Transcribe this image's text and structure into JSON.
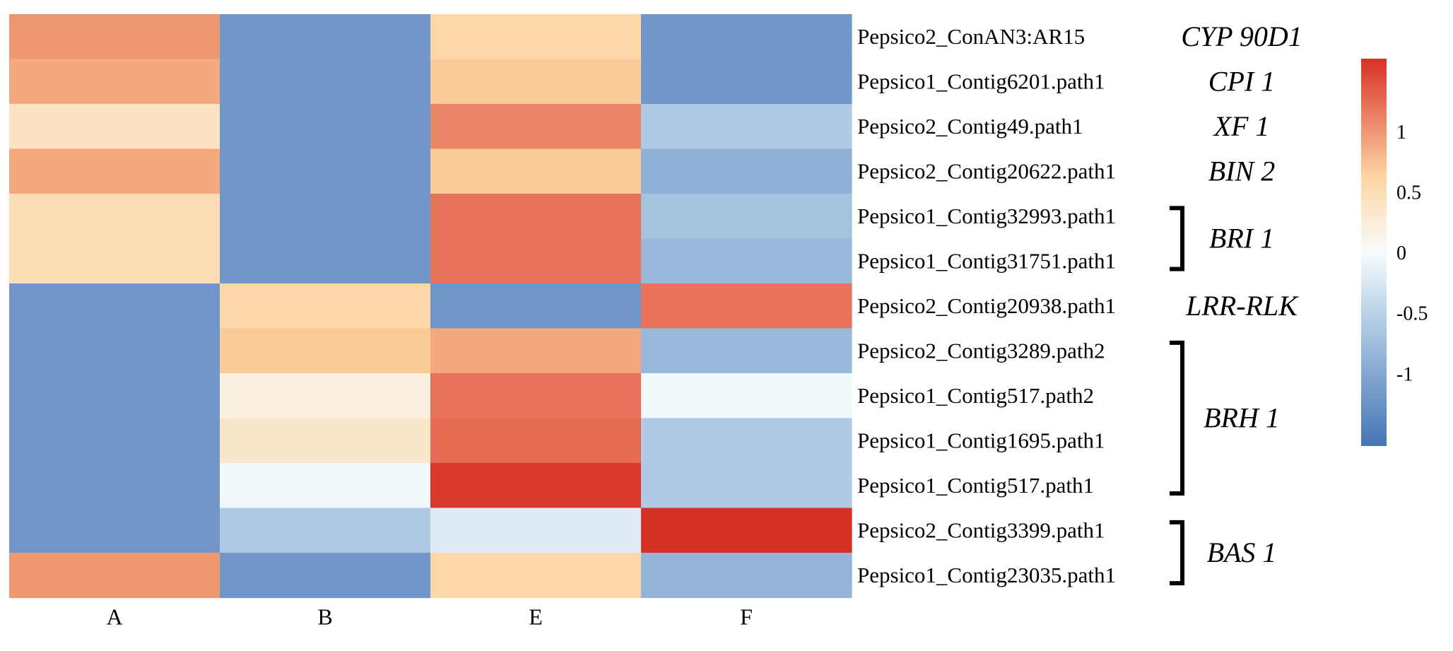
{
  "chart_data": {
    "type": "heatmap",
    "columns": [
      "A",
      "B",
      "E",
      "F"
    ],
    "rows": [
      "Pepsico2_ConAN3:AR15",
      "Pepsico1_Contig6201.path1",
      "Pepsico2_Contig49.path1",
      "Pepsico2_Contig20622.path1",
      "Pepsico1_Contig32993.path1",
      "Pepsico1_Contig31751.path1",
      "Pepsico2_Contig20938.path1",
      "Pepsico2_Contig3289.path2",
      "Pepsico1_Contig517.path2",
      "Pepsico1_Contig1695.path1",
      "Pepsico1_Contig517.path1",
      "Pepsico2_Contig3399.path1",
      "Pepsico1_Contig23035.path1"
    ],
    "values": [
      [
        1.0,
        -1.2,
        0.6,
        -1.2
      ],
      [
        0.9,
        -1.2,
        0.7,
        -1.2
      ],
      [
        0.4,
        -1.2,
        1.1,
        -0.6
      ],
      [
        0.9,
        -1.2,
        0.7,
        -0.9
      ],
      [
        0.5,
        -1.2,
        1.2,
        -0.7
      ],
      [
        0.5,
        -1.2,
        1.2,
        -0.8
      ],
      [
        -1.2,
        0.6,
        -1.2,
        1.2
      ],
      [
        -1.2,
        0.7,
        0.9,
        -0.8
      ],
      [
        -1.2,
        0.2,
        1.2,
        -0.05
      ],
      [
        -1.2,
        0.35,
        1.25,
        -0.6
      ],
      [
        -1.2,
        -0.05,
        1.55,
        -0.6
      ],
      [
        -1.2,
        -0.6,
        -0.2,
        1.6
      ],
      [
        1.0,
        -1.2,
        0.6,
        -0.85
      ]
    ],
    "gene_groups": [
      {
        "name": "CYP 90D1",
        "rows": [
          0,
          0
        ],
        "bracket": false
      },
      {
        "name": "CPI 1",
        "rows": [
          1,
          1
        ],
        "bracket": false
      },
      {
        "name": "XF 1",
        "rows": [
          2,
          2
        ],
        "bracket": false
      },
      {
        "name": "BIN 2",
        "rows": [
          3,
          3
        ],
        "bracket": false
      },
      {
        "name": "BRI 1",
        "rows": [
          4,
          5
        ],
        "bracket": true
      },
      {
        "name": "LRR-RLK",
        "rows": [
          6,
          6
        ],
        "bracket": false
      },
      {
        "name": "BRH 1",
        "rows": [
          7,
          10
        ],
        "bracket": true
      },
      {
        "name": "BAS 1",
        "rows": [
          11,
          12
        ],
        "bracket": true
      }
    ],
    "colorbar": {
      "range": [
        -1.6,
        1.6
      ],
      "ticks": [
        1,
        0.5,
        0,
        -0.5,
        -1
      ],
      "tick_labels": [
        "1",
        "0.5",
        "0",
        "-0.5",
        "-1"
      ],
      "colors": {
        "low": "#4575b4",
        "mid_low": "#abc7e2",
        "mid": "#f7fcfd",
        "mid_high": "#fdd4a1",
        "high": "#d73027"
      }
    },
    "title": "",
    "xlabel": "",
    "ylabel": ""
  }
}
